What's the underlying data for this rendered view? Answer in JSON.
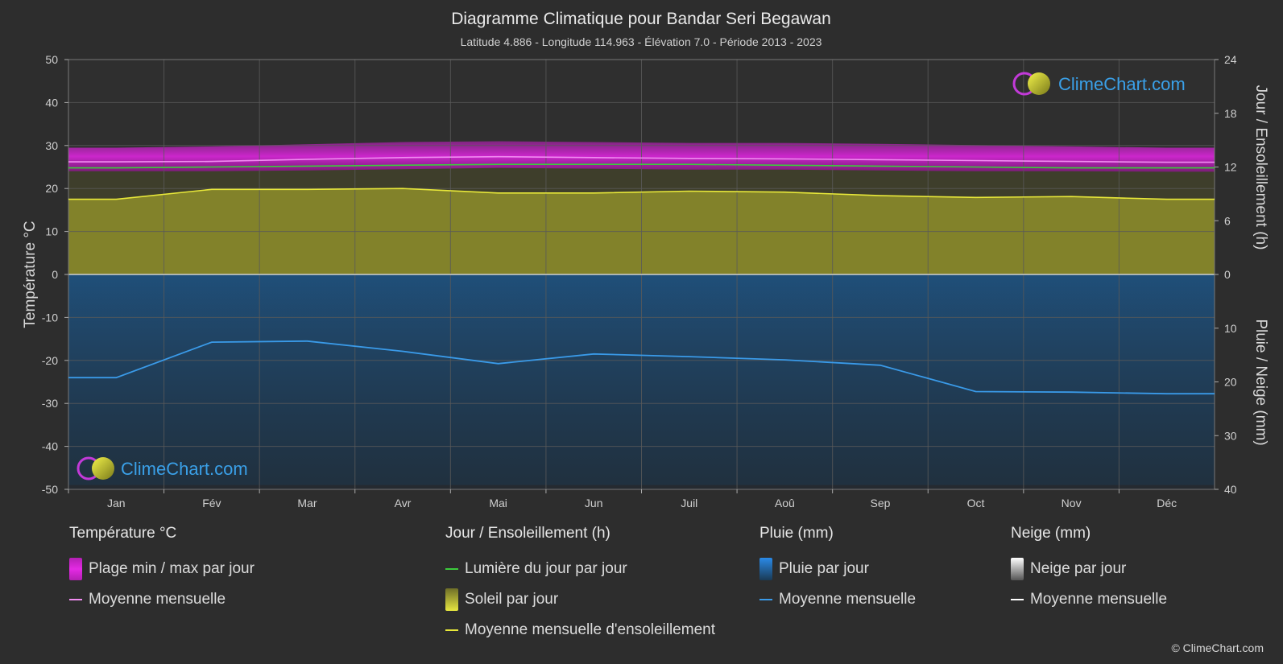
{
  "title": "Diagramme Climatique pour Bandar Seri Begawan",
  "subtitle": "Latitude 4.886 - Longitude 114.963 - Élévation 7.0 - Période 2013 - 2023",
  "brand": "ClimeChart.com",
  "copyright": "© ClimeChart.com",
  "colors": {
    "background": "#2d2d2d",
    "temp_band": "#c21fc2",
    "temp_mean": "#f08cf0",
    "daylight": "#3ccc3c",
    "sun_fill": "#8c8c2a",
    "sun_mean": "#e8e83a",
    "rain_fill": "#1a5f9a",
    "rain_mean": "#3a9ae8",
    "snow_mean": "#ffffff",
    "brand": "#3aa0e8"
  },
  "chart_data": {
    "type": "area",
    "categories": [
      "Jan",
      "Fév",
      "Mar",
      "Avr",
      "Mai",
      "Jun",
      "Juil",
      "Aoû",
      "Sep",
      "Oct",
      "Nov",
      "Déc"
    ],
    "left_axis": {
      "label": "Température °C",
      "ylim": [
        -50,
        50
      ],
      "ticks": [
        "50",
        "40",
        "30",
        "20",
        "10",
        "0",
        "-10",
        "-20",
        "-30",
        "-40",
        "-50"
      ]
    },
    "right_axis_top": {
      "label": "Jour / Ensoleillement (h)",
      "ylim": [
        0,
        24
      ],
      "ticks": [
        "24",
        "18",
        "12",
        "6",
        "0"
      ]
    },
    "right_axis_bottom": {
      "label": "Pluie / Neige (mm)",
      "ylim": [
        0,
        40
      ],
      "ticks": [
        "0",
        "10",
        "20",
        "30",
        "40"
      ]
    },
    "grid": true,
    "series": [
      {
        "name": "Plage min / max par jour",
        "kind": "band",
        "axis": "temp",
        "min": [
          24.0,
          24.0,
          24.2,
          24.5,
          24.8,
          24.6,
          24.4,
          24.4,
          24.2,
          24.0,
          24.0,
          23.9
        ],
        "max": [
          29.5,
          29.8,
          30.3,
          30.8,
          31.0,
          30.8,
          30.6,
          30.6,
          30.4,
          30.1,
          29.8,
          29.5
        ]
      },
      {
        "name": "Moyenne mensuelle",
        "kind": "line",
        "axis": "temp",
        "values": [
          26.2,
          26.3,
          26.8,
          27.2,
          27.4,
          27.2,
          27.0,
          26.9,
          26.7,
          26.5,
          26.3,
          26.1
        ]
      },
      {
        "name": "Lumière du jour par jour",
        "kind": "line",
        "axis": "sun",
        "values": [
          11.9,
          12.0,
          12.1,
          12.2,
          12.3,
          12.3,
          12.3,
          12.2,
          12.1,
          12.0,
          11.9,
          11.9
        ]
      },
      {
        "name": "Soleil par jour",
        "kind": "area",
        "axis": "sun",
        "values": [
          8.4,
          9.5,
          9.5,
          9.6,
          9.1,
          9.1,
          9.3,
          9.2,
          8.8,
          8.6,
          8.7,
          8.4
        ]
      },
      {
        "name": "Moyenne mensuelle d'ensoleillement",
        "kind": "line",
        "axis": "sun",
        "values": [
          8.4,
          9.5,
          9.5,
          9.6,
          9.1,
          9.1,
          9.3,
          9.2,
          8.8,
          8.6,
          8.7,
          8.4
        ]
      },
      {
        "name": "Pluie par jour",
        "kind": "bars",
        "axis": "rain",
        "values": [
          19.2,
          12.6,
          12.4,
          14.3,
          16.6,
          14.8,
          15.3,
          15.9,
          16.9,
          21.8,
          21.9,
          22.2
        ]
      },
      {
        "name": "Moyenne mensuelle",
        "kind": "line",
        "axis": "rain",
        "values": [
          19.2,
          12.6,
          12.4,
          14.3,
          16.6,
          14.8,
          15.3,
          15.9,
          16.9,
          21.8,
          21.9,
          22.2
        ]
      }
    ]
  },
  "legend": {
    "temperature": {
      "title": "Température °C",
      "items": [
        "Plage min / max par jour",
        "Moyenne mensuelle"
      ]
    },
    "sun": {
      "title": "Jour / Ensoleillement (h)",
      "items": [
        "Lumière du jour par jour",
        "Soleil par jour",
        "Moyenne mensuelle d'ensoleillement"
      ]
    },
    "rain": {
      "title": "Pluie (mm)",
      "items": [
        "Pluie par jour",
        "Moyenne mensuelle"
      ]
    },
    "snow": {
      "title": "Neige (mm)",
      "items": [
        "Neige par jour",
        "Moyenne mensuelle"
      ]
    }
  }
}
